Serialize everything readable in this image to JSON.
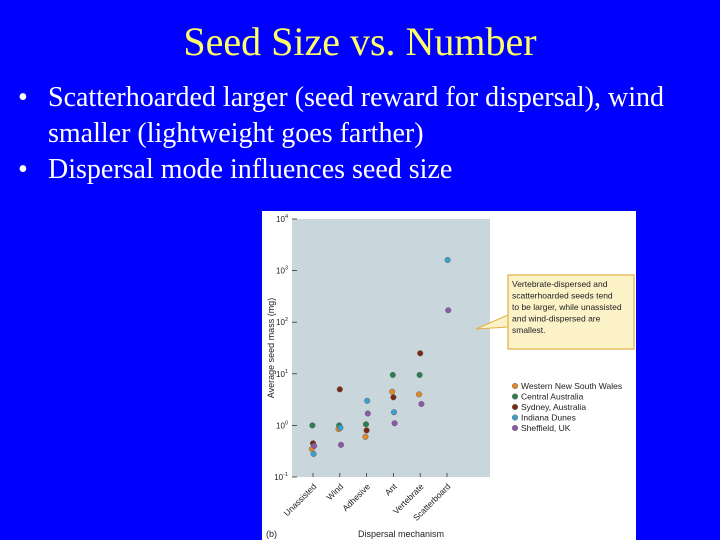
{
  "slide": {
    "title": "Seed Size vs. Number",
    "bullets": [
      "Scatterhoarded larger (seed reward for dispersal), wind smaller (lightweight goes farther)",
      "Dispersal mode influences seed size"
    ],
    "bullet_glyph": "•",
    "colors": {
      "background": "#0000ff",
      "title": "#ffff66",
      "text": "#ffffff"
    }
  },
  "chart_data": {
    "type": "scatter",
    "y_scale": "log10",
    "ylim": [
      0.1,
      10000
    ],
    "y_ticks": [
      {
        "base": "10",
        "exp": "-1"
      },
      {
        "base": "10",
        "exp": "0"
      },
      {
        "base": "10",
        "exp": "1"
      },
      {
        "base": "10",
        "exp": "2"
      },
      {
        "base": "10",
        "exp": "3"
      },
      {
        "base": "10",
        "exp": "4"
      }
    ],
    "xlabel": "Dispersal mechanism",
    "ylabel": "Average seed mass (mg)",
    "categories": [
      "Unassisted",
      "Wind",
      "Adhesive",
      "Ant",
      "Vertebrate",
      "Scatterboard"
    ],
    "panel_label": "(b)",
    "annotation": [
      "Vertebrate-dispersed and",
      "scatterhoarded seeds tend",
      "to be larger, while unassisted",
      "and wind-dispersed are",
      "smallest."
    ],
    "legend_position": "right",
    "series": [
      {
        "name": "Western New South Wales",
        "color": "#e0882a",
        "points": [
          {
            "x": "Unassisted",
            "y": 0.35
          },
          {
            "x": "Wind",
            "y": 0.85
          },
          {
            "x": "Adhesive",
            "y": 0.6
          },
          {
            "x": "Ant",
            "y": 4.5
          },
          {
            "x": "Vertebrate",
            "y": 4.0
          }
        ]
      },
      {
        "name": "Central Australia",
        "color": "#2e7d4e",
        "points": [
          {
            "x": "Unassisted",
            "y": 1.0
          },
          {
            "x": "Wind",
            "y": 1.0
          },
          {
            "x": "Adhesive",
            "y": 1.05
          },
          {
            "x": "Ant",
            "y": 9.5
          },
          {
            "x": "Vertebrate",
            "y": 9.5
          }
        ]
      },
      {
        "name": "Sydney, Australia",
        "color": "#7a2a14",
        "points": [
          {
            "x": "Unassisted",
            "y": 0.45
          },
          {
            "x": "Wind",
            "y": 5.0
          },
          {
            "x": "Adhesive",
            "y": 0.8
          },
          {
            "x": "Ant",
            "y": 3.5
          },
          {
            "x": "Vertebrate",
            "y": 25
          }
        ]
      },
      {
        "name": "Indiana Dunes",
        "color": "#3aa0c8",
        "points": [
          {
            "x": "Unassisted",
            "y": 0.28
          },
          {
            "x": "Wind",
            "y": 0.9
          },
          {
            "x": "Adhesive",
            "y": 3.0
          },
          {
            "x": "Ant",
            "y": 1.8
          },
          {
            "x": "Scatterboard",
            "y": 1600
          }
        ]
      },
      {
        "name": "Sheffield, UK",
        "color": "#8a5aa8",
        "points": [
          {
            "x": "Unassisted",
            "y": 0.4
          },
          {
            "x": "Wind",
            "y": 0.42
          },
          {
            "x": "Adhesive",
            "y": 1.7
          },
          {
            "x": "Ant",
            "y": 1.1
          },
          {
            "x": "Vertebrate",
            "y": 2.6
          },
          {
            "x": "Scatterboard",
            "y": 170
          }
        ]
      }
    ],
    "colors": {
      "plot_bg": "#c9d6dc",
      "callout_bg": "#fbf2c8",
      "callout_border": "#e3b043"
    }
  }
}
